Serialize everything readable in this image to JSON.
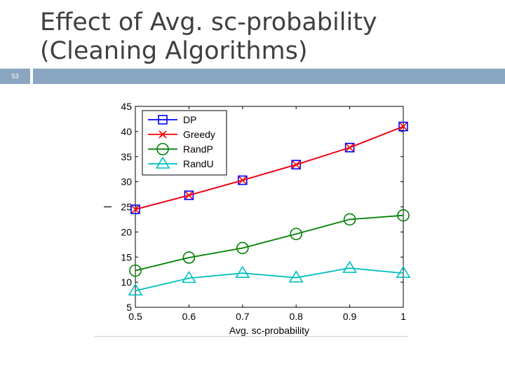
{
  "slide": {
    "title": "Effect of Avg. sc-probability (Cleaning Algorithms)",
    "page_number": "53"
  },
  "colors": {
    "header_bar": "#8aa6c1",
    "DP": "#0000ff",
    "Greedy": "#ff0000",
    "RandP": "#008000",
    "RandU": "#00bfbf"
  },
  "chart_data": {
    "type": "line",
    "title": "",
    "xlabel": "Avg. sc-probability",
    "ylabel": "",
    "x": [
      0.5,
      0.6,
      0.7,
      0.8,
      0.9,
      1
    ],
    "x_tick_labels": [
      "0.5",
      "0.6",
      "0.7",
      "0.8",
      "0.9",
      "1"
    ],
    "xlim": [
      0.5,
      1
    ],
    "ylim": [
      5,
      45
    ],
    "y_ticks": [
      5,
      10,
      15,
      20,
      25,
      30,
      35,
      40,
      45
    ],
    "grid": false,
    "legend_position": "top-left",
    "series": [
      {
        "name": "DP",
        "marker": "square",
        "color": "#0000ff",
        "values": [
          24.5,
          27.3,
          30.3,
          33.4,
          36.8,
          41.0
        ]
      },
      {
        "name": "Greedy",
        "marker": "x",
        "color": "#ff0000",
        "values": [
          24.5,
          27.3,
          30.3,
          33.4,
          36.8,
          41.0
        ]
      },
      {
        "name": "RandP",
        "marker": "circle",
        "color": "#008000",
        "values": [
          12.3,
          14.9,
          16.8,
          19.6,
          22.5,
          23.3
        ]
      },
      {
        "name": "RandU",
        "marker": "triangle",
        "color": "#00bfbf",
        "values": [
          8.3,
          10.8,
          11.8,
          10.9,
          12.8,
          11.8
        ]
      }
    ]
  }
}
